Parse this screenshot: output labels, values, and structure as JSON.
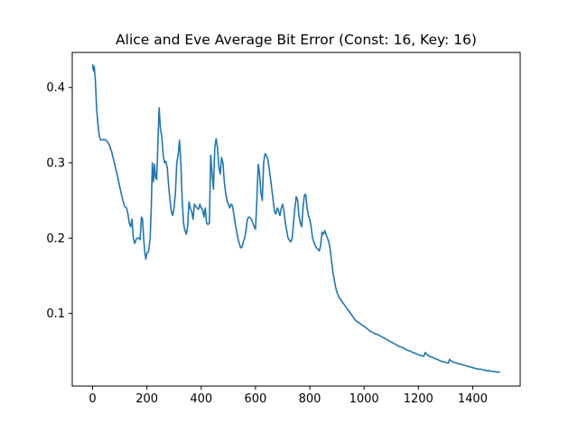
{
  "chart_data": {
    "type": "line",
    "title": "Alice and Eve Average Bit Error (Const: 16, Key: 16)",
    "xlabel": "",
    "ylabel": "",
    "xlim": [
      -75,
      1575
    ],
    "ylim": [
      0.0035,
      0.4465
    ],
    "x_ticks": [
      0,
      200,
      400,
      600,
      800,
      1000,
      1200,
      1400
    ],
    "y_ticks": [
      0.1,
      0.2,
      0.3,
      0.4
    ],
    "x_tick_labels": [
      "0",
      "200",
      "400",
      "600",
      "800",
      "1000",
      "1200",
      "1400"
    ],
    "y_tick_labels": [
      "0.1",
      "0.2",
      "0.3",
      "0.4"
    ],
    "grid": false,
    "legend": "none",
    "series": [
      {
        "color": "#1f77b4",
        "points": [
          [
            0,
            0.43
          ],
          [
            3,
            0.422
          ],
          [
            6,
            0.428
          ],
          [
            10,
            0.41
          ],
          [
            15,
            0.37
          ],
          [
            20,
            0.35
          ],
          [
            25,
            0.335
          ],
          [
            30,
            0.33
          ],
          [
            40,
            0.331
          ],
          [
            50,
            0.33
          ],
          [
            60,
            0.325
          ],
          [
            70,
            0.315
          ],
          [
            80,
            0.3
          ],
          [
            90,
            0.285
          ],
          [
            100,
            0.268
          ],
          [
            110,
            0.252
          ],
          [
            118,
            0.242
          ],
          [
            125,
            0.24
          ],
          [
            130,
            0.232
          ],
          [
            135,
            0.22
          ],
          [
            140,
            0.215
          ],
          [
            145,
            0.225
          ],
          [
            150,
            0.2
          ],
          [
            155,
            0.193
          ],
          [
            160,
            0.198
          ],
          [
            165,
            0.2
          ],
          [
            170,
            0.2
          ],
          [
            175,
            0.198
          ],
          [
            180,
            0.228
          ],
          [
            184,
            0.225
          ],
          [
            188,
            0.2
          ],
          [
            192,
            0.182
          ],
          [
            196,
            0.172
          ],
          [
            200,
            0.18
          ],
          [
            206,
            0.182
          ],
          [
            212,
            0.2
          ],
          [
            216,
            0.24
          ],
          [
            220,
            0.3
          ],
          [
            224,
            0.275
          ],
          [
            228,
            0.298
          ],
          [
            232,
            0.28
          ],
          [
            236,
            0.278
          ],
          [
            240,
            0.32
          ],
          [
            245,
            0.373
          ],
          [
            250,
            0.345
          ],
          [
            255,
            0.335
          ],
          [
            260,
            0.31
          ],
          [
            265,
            0.3
          ],
          [
            270,
            0.302
          ],
          [
            275,
            0.293
          ],
          [
            280,
            0.27
          ],
          [
            285,
            0.25
          ],
          [
            290,
            0.235
          ],
          [
            295,
            0.23
          ],
          [
            300,
            0.24
          ],
          [
            305,
            0.26
          ],
          [
            310,
            0.3
          ],
          [
            315,
            0.31
          ],
          [
            320,
            0.33
          ],
          [
            325,
            0.3
          ],
          [
            330,
            0.25
          ],
          [
            335,
            0.22
          ],
          [
            340,
            0.21
          ],
          [
            345,
            0.205
          ],
          [
            350,
            0.215
          ],
          [
            355,
            0.248
          ],
          [
            360,
            0.24
          ],
          [
            365,
            0.235
          ],
          [
            370,
            0.225
          ],
          [
            375,
            0.245
          ],
          [
            380,
            0.242
          ],
          [
            385,
            0.24
          ],
          [
            390,
            0.238
          ],
          [
            395,
            0.245
          ],
          [
            400,
            0.24
          ],
          [
            405,
            0.238
          ],
          [
            410,
            0.228
          ],
          [
            415,
            0.24
          ],
          [
            420,
            0.22
          ],
          [
            425,
            0.218
          ],
          [
            430,
            0.22
          ],
          [
            435,
            0.31
          ],
          [
            440,
            0.285
          ],
          [
            445,
            0.265
          ],
          [
            450,
            0.32
          ],
          [
            455,
            0.332
          ],
          [
            460,
            0.32
          ],
          [
            465,
            0.295
          ],
          [
            470,
            0.285
          ],
          [
            475,
            0.307
          ],
          [
            480,
            0.3
          ],
          [
            485,
            0.275
          ],
          [
            490,
            0.26
          ],
          [
            495,
            0.25
          ],
          [
            500,
            0.245
          ],
          [
            505,
            0.24
          ],
          [
            510,
            0.245
          ],
          [
            515,
            0.243
          ],
          [
            520,
            0.232
          ],
          [
            525,
            0.22
          ],
          [
            530,
            0.21
          ],
          [
            535,
            0.2
          ],
          [
            540,
            0.193
          ],
          [
            545,
            0.187
          ],
          [
            550,
            0.188
          ],
          [
            555,
            0.195
          ],
          [
            560,
            0.2
          ],
          [
            565,
            0.21
          ],
          [
            570,
            0.225
          ],
          [
            575,
            0.228
          ],
          [
            580,
            0.227
          ],
          [
            585,
            0.225
          ],
          [
            590,
            0.22
          ],
          [
            595,
            0.215
          ],
          [
            600,
            0.212
          ],
          [
            605,
            0.25
          ],
          [
            610,
            0.298
          ],
          [
            615,
            0.285
          ],
          [
            620,
            0.26
          ],
          [
            625,
            0.25
          ],
          [
            630,
            0.3
          ],
          [
            635,
            0.312
          ],
          [
            640,
            0.31
          ],
          [
            645,
            0.305
          ],
          [
            650,
            0.293
          ],
          [
            655,
            0.28
          ],
          [
            660,
            0.265
          ],
          [
            665,
            0.25
          ],
          [
            670,
            0.235
          ],
          [
            675,
            0.232
          ],
          [
            680,
            0.24
          ],
          [
            685,
            0.236
          ],
          [
            690,
            0.23
          ],
          [
            695,
            0.24
          ],
          [
            700,
            0.245
          ],
          [
            705,
            0.235
          ],
          [
            710,
            0.22
          ],
          [
            715,
            0.21
          ],
          [
            720,
            0.2
          ],
          [
            725,
            0.197
          ],
          [
            730,
            0.195
          ],
          [
            735,
            0.2
          ],
          [
            740,
            0.22
          ],
          [
            745,
            0.24
          ],
          [
            750,
            0.255
          ],
          [
            755,
            0.25
          ],
          [
            760,
            0.23
          ],
          [
            765,
            0.22
          ],
          [
            770,
            0.215
          ],
          [
            775,
            0.24
          ],
          [
            780,
            0.257
          ],
          [
            785,
            0.258
          ],
          [
            790,
            0.24
          ],
          [
            795,
            0.23
          ],
          [
            800,
            0.225
          ],
          [
            805,
            0.215
          ],
          [
            810,
            0.2
          ],
          [
            815,
            0.195
          ],
          [
            820,
            0.19
          ],
          [
            825,
            0.187
          ],
          [
            830,
            0.185
          ],
          [
            835,
            0.183
          ],
          [
            840,
            0.19
          ],
          [
            845,
            0.208
          ],
          [
            850,
            0.205
          ],
          [
            855,
            0.21
          ],
          [
            860,
            0.205
          ],
          [
            865,
            0.2
          ],
          [
            870,
            0.195
          ],
          [
            875,
            0.185
          ],
          [
            880,
            0.17
          ],
          [
            885,
            0.155
          ],
          [
            890,
            0.145
          ],
          [
            895,
            0.135
          ],
          [
            900,
            0.128
          ],
          [
            910,
            0.12
          ],
          [
            920,
            0.115
          ],
          [
            930,
            0.11
          ],
          [
            940,
            0.105
          ],
          [
            950,
            0.1
          ],
          [
            960,
            0.095
          ],
          [
            970,
            0.09
          ],
          [
            980,
            0.088
          ],
          [
            990,
            0.085
          ],
          [
            1000,
            0.083
          ],
          [
            1010,
            0.08
          ],
          [
            1020,
            0.077
          ],
          [
            1030,
            0.075
          ],
          [
            1040,
            0.073
          ],
          [
            1050,
            0.072
          ],
          [
            1060,
            0.07
          ],
          [
            1070,
            0.068
          ],
          [
            1080,
            0.066
          ],
          [
            1090,
            0.064
          ],
          [
            1100,
            0.062
          ],
          [
            1110,
            0.06
          ],
          [
            1120,
            0.058
          ],
          [
            1130,
            0.056
          ],
          [
            1140,
            0.055
          ],
          [
            1150,
            0.053
          ],
          [
            1160,
            0.051
          ],
          [
            1170,
            0.05
          ],
          [
            1180,
            0.048
          ],
          [
            1190,
            0.047
          ],
          [
            1200,
            0.045
          ],
          [
            1210,
            0.044
          ],
          [
            1220,
            0.043
          ],
          [
            1225,
            0.048
          ],
          [
            1230,
            0.046
          ],
          [
            1240,
            0.043
          ],
          [
            1250,
            0.042
          ],
          [
            1260,
            0.04
          ],
          [
            1270,
            0.039
          ],
          [
            1280,
            0.037
          ],
          [
            1290,
            0.036
          ],
          [
            1300,
            0.035
          ],
          [
            1310,
            0.034
          ],
          [
            1315,
            0.039
          ],
          [
            1320,
            0.037
          ],
          [
            1330,
            0.035
          ],
          [
            1340,
            0.034
          ],
          [
            1350,
            0.033
          ],
          [
            1360,
            0.032
          ],
          [
            1370,
            0.031
          ],
          [
            1380,
            0.03
          ],
          [
            1390,
            0.029
          ],
          [
            1400,
            0.028
          ],
          [
            1410,
            0.027
          ],
          [
            1420,
            0.026
          ],
          [
            1430,
            0.026
          ],
          [
            1440,
            0.025
          ],
          [
            1450,
            0.024
          ],
          [
            1460,
            0.024
          ],
          [
            1470,
            0.023
          ],
          [
            1480,
            0.023
          ],
          [
            1490,
            0.022
          ],
          [
            1499,
            0.022
          ]
        ]
      }
    ]
  }
}
